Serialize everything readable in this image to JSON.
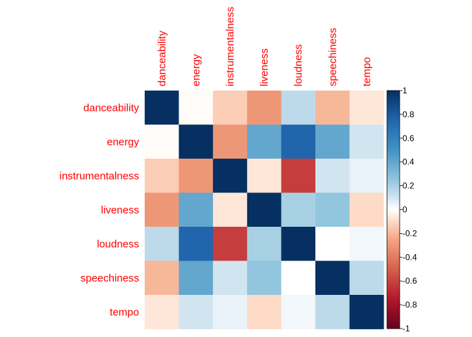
{
  "chart_data": {
    "type": "heatmap",
    "variables": [
      "danceability",
      "energy",
      "instrumentalness",
      "liveness",
      "loudness",
      "speechiness",
      "tempo"
    ],
    "matrix": [
      [
        1.0,
        -0.01,
        -0.14,
        -0.3,
        0.15,
        -0.2,
        -0.07
      ],
      [
        -0.01,
        1.0,
        -0.3,
        0.4,
        0.75,
        0.4,
        0.1
      ],
      [
        -0.14,
        -0.3,
        1.0,
        -0.07,
        -0.62,
        0.1,
        0.05
      ],
      [
        -0.3,
        0.4,
        -0.07,
        1.0,
        0.2,
        0.25,
        -0.1
      ],
      [
        0.15,
        0.75,
        -0.62,
        0.2,
        1.0,
        0.0,
        0.03
      ],
      [
        -0.2,
        0.4,
        0.1,
        0.25,
        0.0,
        1.0,
        0.15
      ],
      [
        -0.07,
        0.1,
        0.05,
        -0.1,
        0.03,
        0.15,
        1.0
      ]
    ],
    "color_scale": {
      "min": -1,
      "max": 1,
      "ticks": [
        "-1",
        "-0.8",
        "-0.6",
        "-0.4",
        "-0.2",
        "0",
        "0.2",
        "0.4",
        "0.6",
        "0.8",
        "1"
      ],
      "low_color": "#67001f",
      "mid_color": "#ffffff",
      "high_color": "#053061"
    },
    "label_color": "#ff0000",
    "grid": false,
    "legend": "right"
  }
}
